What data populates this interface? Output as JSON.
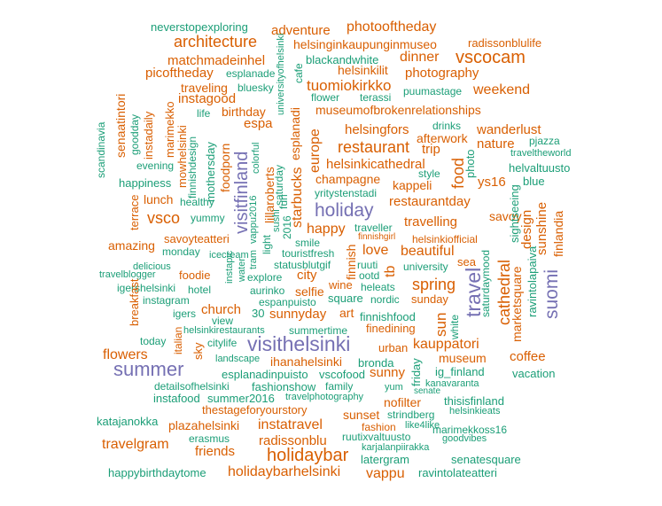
{
  "colors": {
    "orange": "#d95f02",
    "green": "#1b9e77",
    "purple": "#7570b3"
  },
  "words": [
    {
      "text": "neverstopexploring",
      "color": "green"
    },
    {
      "text": "adventure",
      "color": "orange"
    },
    {
      "text": "photooftheday",
      "color": "orange"
    },
    {
      "text": "architecture",
      "color": "orange"
    },
    {
      "text": "helsinginkaupunginmuseo",
      "color": "orange"
    },
    {
      "text": "radissonblulife",
      "color": "orange"
    },
    {
      "text": "matchmadeinhel",
      "color": "orange"
    },
    {
      "text": "blackandwhite",
      "color": "green"
    },
    {
      "text": "dinner",
      "color": "orange"
    },
    {
      "text": "vscocam",
      "color": "orange"
    },
    {
      "text": "picoftheday",
      "color": "orange"
    },
    {
      "text": "esplanade",
      "color": "green"
    },
    {
      "text": "helsinkilit",
      "color": "orange"
    },
    {
      "text": "photography",
      "color": "orange"
    },
    {
      "text": "traveling",
      "color": "orange"
    },
    {
      "text": "bluesky",
      "color": "green"
    },
    {
      "text": "tuomiokirkko",
      "color": "orange"
    },
    {
      "text": "puumastage",
      "color": "green"
    },
    {
      "text": "weekend",
      "color": "orange"
    },
    {
      "text": "instagood",
      "color": "orange"
    },
    {
      "text": "flower",
      "color": "green"
    },
    {
      "text": "terassi",
      "color": "green"
    },
    {
      "text": "life",
      "color": "green"
    },
    {
      "text": "birthday",
      "color": "orange"
    },
    {
      "text": "museumofbrokenrelationships",
      "color": "orange"
    },
    {
      "text": "espa",
      "color": "orange"
    },
    {
      "text": "drinks",
      "color": "green"
    },
    {
      "text": "helsingfors",
      "color": "orange"
    },
    {
      "text": "wanderlust",
      "color": "orange"
    },
    {
      "text": "afterwork",
      "color": "orange"
    },
    {
      "text": "pjazza",
      "color": "green"
    },
    {
      "text": "restaurant",
      "color": "orange"
    },
    {
      "text": "trip",
      "color": "orange"
    },
    {
      "text": "nature",
      "color": "orange"
    },
    {
      "text": "traveltheworld",
      "color": "green"
    },
    {
      "text": "evening",
      "color": "green"
    },
    {
      "text": "helsinkicathedral",
      "color": "orange"
    },
    {
      "text": "helvaltuusto",
      "color": "green"
    },
    {
      "text": "happiness",
      "color": "green"
    },
    {
      "text": "champagne",
      "color": "orange"
    },
    {
      "text": "style",
      "color": "green"
    },
    {
      "text": "kappeli",
      "color": "orange"
    },
    {
      "text": "ys16",
      "color": "orange"
    },
    {
      "text": "blue",
      "color": "green"
    },
    {
      "text": "yritystenstadi",
      "color": "green"
    },
    {
      "text": "lunch",
      "color": "orange"
    },
    {
      "text": "healthy",
      "color": "green"
    },
    {
      "text": "restaurantday",
      "color": "orange"
    },
    {
      "text": "holiday",
      "color": "purple"
    },
    {
      "text": "vsco",
      "color": "orange"
    },
    {
      "text": "yummy",
      "color": "green"
    },
    {
      "text": "travelling",
      "color": "orange"
    },
    {
      "text": "savoy",
      "color": "orange"
    },
    {
      "text": "happy",
      "color": "orange"
    },
    {
      "text": "traveller",
      "color": "green"
    },
    {
      "text": "savoyteatteri",
      "color": "orange"
    },
    {
      "text": "smile",
      "color": "green"
    },
    {
      "text": "finnishgirl",
      "color": "orange"
    },
    {
      "text": "helsinkiofficial",
      "color": "orange"
    },
    {
      "text": "amazing",
      "color": "orange"
    },
    {
      "text": "monday",
      "color": "green"
    },
    {
      "text": "icecream",
      "color": "green"
    },
    {
      "text": "touristfresh",
      "color": "green"
    },
    {
      "text": "love",
      "color": "orange"
    },
    {
      "text": "beautiful",
      "color": "orange"
    },
    {
      "text": "delicious",
      "color": "green"
    },
    {
      "text": "statusblutgif",
      "color": "green"
    },
    {
      "text": "ruuti",
      "color": "green"
    },
    {
      "text": "university",
      "color": "green"
    },
    {
      "text": "sea",
      "color": "orange"
    },
    {
      "text": "travelblogger",
      "color": "green"
    },
    {
      "text": "foodie",
      "color": "orange"
    },
    {
      "text": "explore",
      "color": "green"
    },
    {
      "text": "city",
      "color": "orange"
    },
    {
      "text": "ootd",
      "color": "green"
    },
    {
      "text": "igershelsinki",
      "color": "green"
    },
    {
      "text": "hotel",
      "color": "green"
    },
    {
      "text": "aurinko",
      "color": "green"
    },
    {
      "text": "selfie",
      "color": "orange"
    },
    {
      "text": "wine",
      "color": "orange"
    },
    {
      "text": "heleats",
      "color": "green"
    },
    {
      "text": "spring",
      "color": "orange"
    },
    {
      "text": "instagram",
      "color": "green"
    },
    {
      "text": "espanpuisto",
      "color": "green"
    },
    {
      "text": "square",
      "color": "green"
    },
    {
      "text": "nordic",
      "color": "green"
    },
    {
      "text": "sunday",
      "color": "orange"
    },
    {
      "text": "church",
      "color": "orange"
    },
    {
      "text": "igers",
      "color": "green"
    },
    {
      "text": "30",
      "color": "green"
    },
    {
      "text": "sunnyday",
      "color": "orange"
    },
    {
      "text": "art",
      "color": "orange"
    },
    {
      "text": "finnishfood",
      "color": "green"
    },
    {
      "text": "view",
      "color": "green"
    },
    {
      "text": "helsinkirestaurants",
      "color": "green"
    },
    {
      "text": "summertime",
      "color": "green"
    },
    {
      "text": "finedining",
      "color": "orange"
    },
    {
      "text": "today",
      "color": "green"
    },
    {
      "text": "citylife",
      "color": "green"
    },
    {
      "text": "visithelsinki",
      "color": "purple"
    },
    {
      "text": "urban",
      "color": "orange"
    },
    {
      "text": "kauppatori",
      "color": "orange"
    },
    {
      "text": "flowers",
      "color": "orange"
    },
    {
      "text": "landscape",
      "color": "green"
    },
    {
      "text": "ihanahelsinki",
      "color": "orange"
    },
    {
      "text": "bronda",
      "color": "green"
    },
    {
      "text": "museum",
      "color": "orange"
    },
    {
      "text": "coffee",
      "color": "orange"
    },
    {
      "text": "summer",
      "color": "purple"
    },
    {
      "text": "esplanadinpuisto",
      "color": "green"
    },
    {
      "text": "vscofood",
      "color": "green"
    },
    {
      "text": "sunny",
      "color": "orange"
    },
    {
      "text": "ig_finland",
      "color": "green"
    },
    {
      "text": "vacation",
      "color": "green"
    },
    {
      "text": "detailsofhelsinki",
      "color": "green"
    },
    {
      "text": "fashionshow",
      "color": "green"
    },
    {
      "text": "family",
      "color": "green"
    },
    {
      "text": "yum",
      "color": "green"
    },
    {
      "text": "kanavaranta",
      "color": "green"
    },
    {
      "text": "senate",
      "color": "green"
    },
    {
      "text": "instafood",
      "color": "green"
    },
    {
      "text": "summer2016",
      "color": "green"
    },
    {
      "text": "travelphotography",
      "color": "green"
    },
    {
      "text": "nofilter",
      "color": "orange"
    },
    {
      "text": "thisisfinland",
      "color": "green"
    },
    {
      "text": "thestageforyourstory",
      "color": "orange"
    },
    {
      "text": "helsinkieats",
      "color": "green"
    },
    {
      "text": "katajanokka",
      "color": "green"
    },
    {
      "text": "sunset",
      "color": "orange"
    },
    {
      "text": "strindberg",
      "color": "green"
    },
    {
      "text": "plazahelsinki",
      "color": "orange"
    },
    {
      "text": "instatravel",
      "color": "orange"
    },
    {
      "text": "fashion",
      "color": "orange"
    },
    {
      "text": "like4like",
      "color": "green"
    },
    {
      "text": "marimekkoss16",
      "color": "green"
    },
    {
      "text": "erasmus",
      "color": "green"
    },
    {
      "text": "ruutixvaltuusto",
      "color": "green"
    },
    {
      "text": "goodvibes",
      "color": "green"
    },
    {
      "text": "travelgram",
      "color": "orange"
    },
    {
      "text": "radissonblu",
      "color": "orange"
    },
    {
      "text": "karjalanpiirakka",
      "color": "green"
    },
    {
      "text": "friends",
      "color": "orange"
    },
    {
      "text": "holidaybar",
      "color": "orange"
    },
    {
      "text": "latergram",
      "color": "green"
    },
    {
      "text": "senatesquare",
      "color": "green"
    },
    {
      "text": "happybirthdaytome",
      "color": "green"
    },
    {
      "text": "holidaybarhelsinki",
      "color": "orange"
    },
    {
      "text": "vappu",
      "color": "orange"
    },
    {
      "text": "ravintolateatteri",
      "color": "green"
    },
    {
      "text": "universityofhelsinki",
      "color": "green"
    },
    {
      "text": "cafe",
      "color": "green"
    },
    {
      "text": "esplanadi",
      "color": "orange"
    },
    {
      "text": "marimekko",
      "color": "orange"
    },
    {
      "text": "senaatintori",
      "color": "orange"
    },
    {
      "text": "goodday",
      "color": "green"
    },
    {
      "text": "instadaily",
      "color": "orange"
    },
    {
      "text": "scandinavia",
      "color": "green"
    },
    {
      "text": "mowhelsinki",
      "color": "orange"
    },
    {
      "text": "finnishdesign",
      "color": "green"
    },
    {
      "text": "mothersday",
      "color": "green"
    },
    {
      "text": "foodporn",
      "color": "orange"
    },
    {
      "text": "colorful",
      "color": "green"
    },
    {
      "text": "visitfinland",
      "color": "purple"
    },
    {
      "text": "saturday",
      "color": "green"
    },
    {
      "text": "fun",
      "color": "green"
    },
    {
      "text": "lillaroberts",
      "color": "orange"
    },
    {
      "text": "starbucks",
      "color": "orange"
    },
    {
      "text": "europe",
      "color": "orange"
    },
    {
      "text": "terrace",
      "color": "orange"
    },
    {
      "text": "vappu2016",
      "color": "green"
    },
    {
      "text": "sushi",
      "color": "green"
    },
    {
      "text": "2016",
      "color": "green"
    },
    {
      "text": "light",
      "color": "green"
    },
    {
      "text": "instapic",
      "color": "green"
    },
    {
      "text": "water",
      "color": "green"
    },
    {
      "text": "tram",
      "color": "green"
    },
    {
      "text": "finnish",
      "color": "orange"
    },
    {
      "text": "tb",
      "color": "orange"
    },
    {
      "text": "food",
      "color": "orange"
    },
    {
      "text": "photo",
      "color": "green"
    },
    {
      "text": "sightseeing",
      "color": "green"
    },
    {
      "text": "design",
      "color": "orange"
    },
    {
      "text": "sunshine",
      "color": "orange"
    },
    {
      "text": "finlandia",
      "color": "orange"
    },
    {
      "text": "travel",
      "color": "purple"
    },
    {
      "text": "saturdaymood",
      "color": "green"
    },
    {
      "text": "cathedral",
      "color": "orange"
    },
    {
      "text": "marketsquare",
      "color": "orange"
    },
    {
      "text": "ravintolapaiva",
      "color": "green"
    },
    {
      "text": "suomi",
      "color": "purple"
    },
    {
      "text": "sun",
      "color": "orange"
    },
    {
      "text": "white",
      "color": "green"
    },
    {
      "text": "friday",
      "color": "green"
    },
    {
      "text": "breakfast",
      "color": "orange"
    },
    {
      "text": "italian",
      "color": "orange"
    },
    {
      "text": "sky",
      "color": "orange"
    }
  ]
}
